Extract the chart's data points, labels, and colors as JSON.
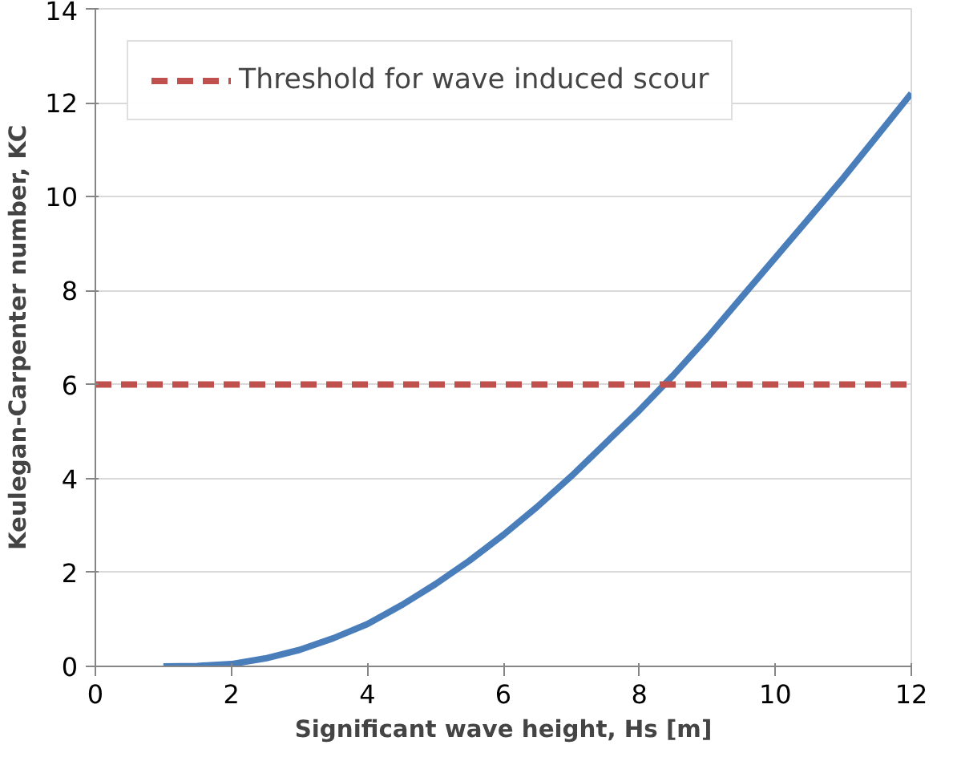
{
  "chart_data": {
    "type": "line",
    "xlabel": "Significant wave height, Hs [m]",
    "ylabel": "Keulegan-Carpenter number, KC",
    "xlim": [
      0,
      12
    ],
    "xticks": [
      0,
      2,
      4,
      6,
      8,
      10,
      12
    ],
    "ylim": [
      0,
      14
    ],
    "yticks": [
      0,
      2,
      4,
      6,
      8,
      10,
      12,
      14
    ],
    "grid": "y",
    "legend": "top left",
    "series": [
      {
        "color": "#4a7ebb",
        "x": [
          1,
          1.5,
          2,
          2.5,
          3,
          3.5,
          4,
          4.5,
          5,
          5.5,
          6,
          6.5,
          7,
          7.5,
          8,
          8.5,
          9,
          9.5,
          10,
          10.5,
          11,
          11.5,
          12
        ],
        "values": [
          0,
          0.01,
          0.05,
          0.17,
          0.35,
          0.6,
          0.9,
          1.3,
          1.75,
          2.25,
          2.8,
          3.4,
          4.05,
          4.75,
          5.45,
          6.2,
          7.0,
          7.85,
          8.7,
          9.55,
          10.4,
          11.3,
          12.2
        ]
      },
      {
        "name": "Threshold for wave induced scour",
        "color": "#c0504d",
        "line_style": "dashed",
        "x": [
          0,
          12
        ],
        "values": [
          6,
          6
        ]
      }
    ]
  }
}
